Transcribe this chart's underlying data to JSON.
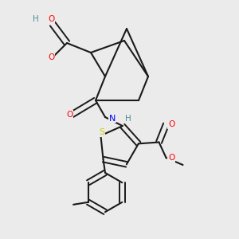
{
  "bg_color": "#ebebeb",
  "bond_color": "#1a1a1a",
  "atom_colors": {
    "O": "#ff0000",
    "N": "#0000ff",
    "S": "#cccc00",
    "H": "#4a9090",
    "C": "#1a1a1a"
  },
  "figsize": [
    3.0,
    3.0
  ],
  "dpi": 100
}
